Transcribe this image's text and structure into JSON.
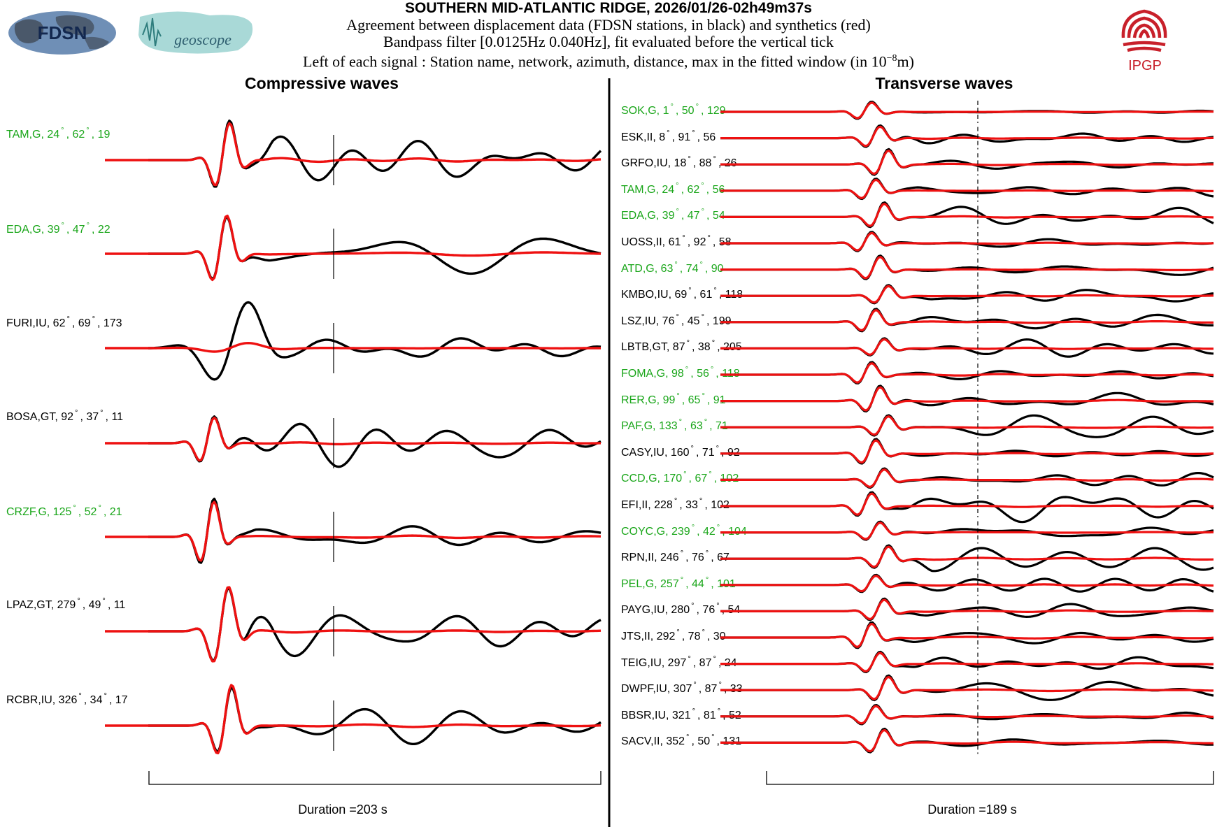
{
  "header": {
    "title": "SOUTHERN MID-ATLANTIC RIDGE, 2026/01/26-02h49m37s",
    "line1": "Agreement between displacement data (FDSN stations, in black) and synthetics (red)",
    "line2": "Bandpass filter [0.0125Hz 0.040Hz], fit evaluated before the vertical tick",
    "line3_prefix": "Left of each signal : Station name, network, azimuth, distance, max in the fitted window (in 10",
    "line3_exp": "−8",
    "line3_suffix": "m)"
  },
  "logos": {
    "fdsn": "FDSN",
    "geoscope": "geoscope",
    "ipgp": "IPGP"
  },
  "colors": {
    "data": "#000000",
    "synthetic": "#ee1111",
    "good_label": "#1aa61a",
    "plain_label": "#000000",
    "ipgp_red": "#c8202a"
  },
  "chart_data": [
    {
      "type": "line",
      "title": "Compressive waves",
      "xlabel": "Duration =203 s",
      "duration_s": 203,
      "series": [
        "data (black)",
        "synthetics (red)"
      ],
      "traces": [
        {
          "station": "TAM",
          "network": "G",
          "azimuth": 24,
          "distance": 62,
          "max": 19,
          "highlight": true
        },
        {
          "station": "EDA",
          "network": "G",
          "azimuth": 39,
          "distance": 47,
          "max": 22,
          "highlight": true
        },
        {
          "station": "FURI",
          "network": "IU",
          "azimuth": 62,
          "distance": 69,
          "max": 173,
          "highlight": false
        },
        {
          "station": "BOSA",
          "network": "GT",
          "azimuth": 92,
          "distance": 37,
          "max": 11,
          "highlight": false
        },
        {
          "station": "CRZF",
          "network": "G",
          "azimuth": 125,
          "distance": 52,
          "max": 21,
          "highlight": true
        },
        {
          "station": "LPAZ",
          "network": "GT",
          "azimuth": 279,
          "distance": 49,
          "max": 11,
          "highlight": false
        },
        {
          "station": "RCBR",
          "network": "IU",
          "azimuth": 326,
          "distance": 34,
          "max": 17,
          "highlight": false
        }
      ]
    },
    {
      "type": "line",
      "title": "Transverse waves",
      "xlabel": "Duration =189 s",
      "duration_s": 189,
      "series": [
        "data (black)",
        "synthetics (red)"
      ],
      "traces": [
        {
          "station": "SOK",
          "network": "G",
          "azimuth": 1,
          "distance": 50,
          "max": 129,
          "highlight": true
        },
        {
          "station": "ESK",
          "network": "II",
          "azimuth": 8,
          "distance": 91,
          "max": 56,
          "highlight": false
        },
        {
          "station": "GRFO",
          "network": "IU",
          "azimuth": 18,
          "distance": 88,
          "max": 26,
          "highlight": false
        },
        {
          "station": "TAM",
          "network": "G",
          "azimuth": 24,
          "distance": 62,
          "max": 56,
          "highlight": true
        },
        {
          "station": "EDA",
          "network": "G",
          "azimuth": 39,
          "distance": 47,
          "max": 54,
          "highlight": true
        },
        {
          "station": "UOSS",
          "network": "II",
          "azimuth": 61,
          "distance": 92,
          "max": 58,
          "highlight": false
        },
        {
          "station": "ATD",
          "network": "G",
          "azimuth": 63,
          "distance": 74,
          "max": 90,
          "highlight": true
        },
        {
          "station": "KMBO",
          "network": "IU",
          "azimuth": 69,
          "distance": 61,
          "max": 118,
          "highlight": false
        },
        {
          "station": "LSZ",
          "network": "IU",
          "azimuth": 76,
          "distance": 45,
          "max": 199,
          "highlight": false
        },
        {
          "station": "LBTB",
          "network": "GT",
          "azimuth": 87,
          "distance": 38,
          "max": 205,
          "highlight": false
        },
        {
          "station": "FOMA",
          "network": "G",
          "azimuth": 98,
          "distance": 56,
          "max": 118,
          "highlight": true
        },
        {
          "station": "RER",
          "network": "G",
          "azimuth": 99,
          "distance": 65,
          "max": 91,
          "highlight": true
        },
        {
          "station": "PAF",
          "network": "G",
          "azimuth": 133,
          "distance": 63,
          "max": 71,
          "highlight": true
        },
        {
          "station": "CASY",
          "network": "IU",
          "azimuth": 160,
          "distance": 71,
          "max": 92,
          "highlight": false
        },
        {
          "station": "CCD",
          "network": "G",
          "azimuth": 170,
          "distance": 67,
          "max": 102,
          "highlight": true
        },
        {
          "station": "EFI",
          "network": "II",
          "azimuth": 228,
          "distance": 33,
          "max": 102,
          "highlight": false
        },
        {
          "station": "COYC",
          "network": "G",
          "azimuth": 239,
          "distance": 42,
          "max": 104,
          "highlight": true
        },
        {
          "station": "RPN",
          "network": "II",
          "azimuth": 246,
          "distance": 76,
          "max": 67,
          "highlight": false
        },
        {
          "station": "PEL",
          "network": "G",
          "azimuth": 257,
          "distance": 44,
          "max": 101,
          "highlight": true
        },
        {
          "station": "PAYG",
          "network": "IU",
          "azimuth": 280,
          "distance": 76,
          "max": 54,
          "highlight": false
        },
        {
          "station": "JTS",
          "network": "II",
          "azimuth": 292,
          "distance": 78,
          "max": 30,
          "highlight": false
        },
        {
          "station": "TEIG",
          "network": "IU",
          "azimuth": 297,
          "distance": 87,
          "max": 24,
          "highlight": false
        },
        {
          "station": "DWPF",
          "network": "IU",
          "azimuth": 307,
          "distance": 87,
          "max": 33,
          "highlight": false
        },
        {
          "station": "BBSR",
          "network": "IU",
          "azimuth": 321,
          "distance": 81,
          "max": 52,
          "highlight": false
        },
        {
          "station": "SACV",
          "network": "II",
          "azimuth": 352,
          "distance": 50,
          "max": 131,
          "highlight": false
        }
      ]
    }
  ]
}
